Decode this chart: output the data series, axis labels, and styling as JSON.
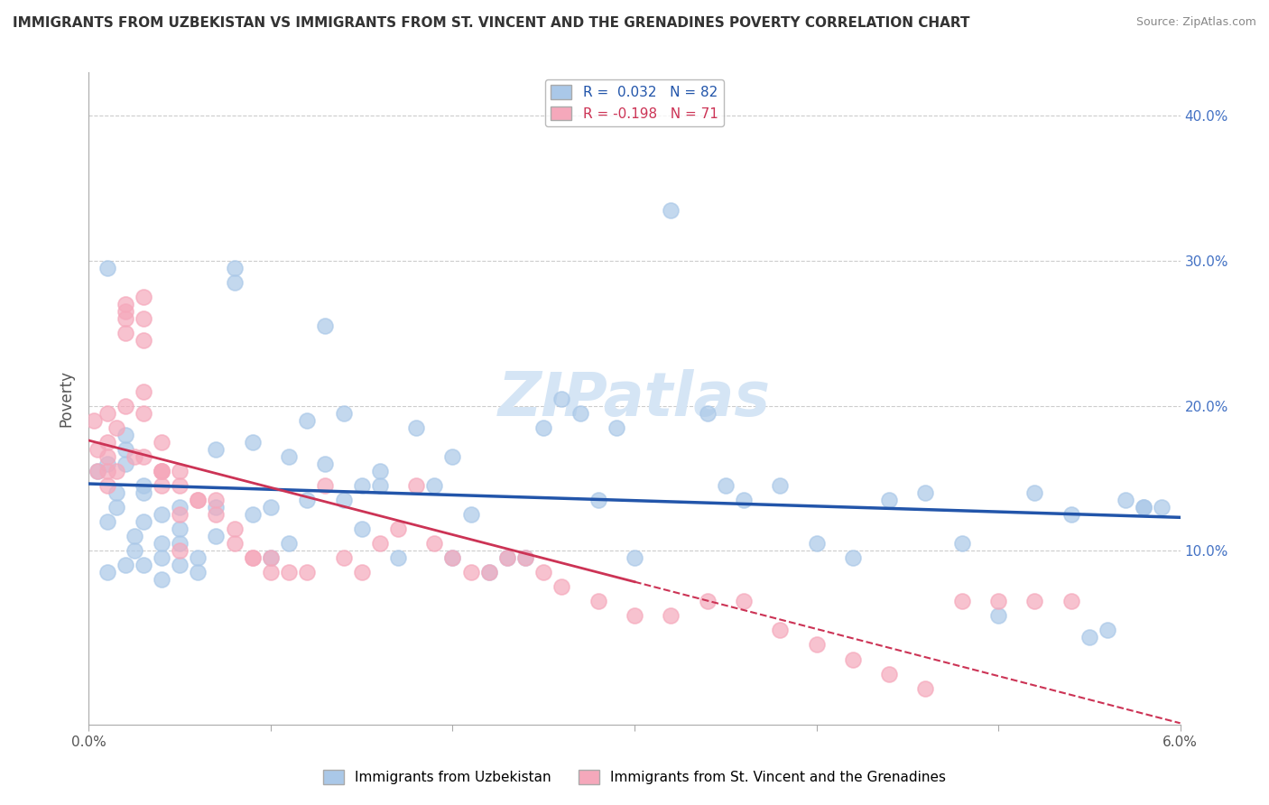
{
  "title": "IMMIGRANTS FROM UZBEKISTAN VS IMMIGRANTS FROM ST. VINCENT AND THE GRENADINES POVERTY CORRELATION CHART",
  "source": "Source: ZipAtlas.com",
  "ylabel": "Poverty",
  "xlim": [
    0.0,
    0.06
  ],
  "ylim": [
    -0.02,
    0.43
  ],
  "blue_R": 0.032,
  "blue_N": 82,
  "pink_R": -0.198,
  "pink_N": 71,
  "blue_color": "#aac8e8",
  "pink_color": "#f5a8bb",
  "blue_line_color": "#2255aa",
  "pink_line_color": "#cc3355",
  "watermark_color": "#d5e5f5",
  "blue_scatter_x": [
    0.0005,
    0.001,
    0.0015,
    0.001,
    0.002,
    0.001,
    0.0015,
    0.002,
    0.002,
    0.001,
    0.0025,
    0.002,
    0.003,
    0.0025,
    0.003,
    0.003,
    0.003,
    0.004,
    0.004,
    0.004,
    0.004,
    0.005,
    0.005,
    0.005,
    0.005,
    0.006,
    0.006,
    0.007,
    0.007,
    0.007,
    0.008,
    0.008,
    0.009,
    0.009,
    0.01,
    0.01,
    0.011,
    0.011,
    0.012,
    0.012,
    0.013,
    0.013,
    0.014,
    0.014,
    0.015,
    0.015,
    0.016,
    0.016,
    0.017,
    0.018,
    0.019,
    0.02,
    0.02,
    0.021,
    0.022,
    0.023,
    0.024,
    0.025,
    0.026,
    0.027,
    0.028,
    0.029,
    0.03,
    0.032,
    0.034,
    0.035,
    0.036,
    0.038,
    0.04,
    0.042,
    0.044,
    0.046,
    0.048,
    0.05,
    0.052,
    0.054,
    0.055,
    0.056,
    0.057,
    0.058,
    0.058,
    0.059
  ],
  "blue_scatter_y": [
    0.155,
    0.295,
    0.14,
    0.16,
    0.18,
    0.12,
    0.13,
    0.17,
    0.16,
    0.085,
    0.11,
    0.09,
    0.14,
    0.1,
    0.09,
    0.12,
    0.145,
    0.095,
    0.105,
    0.125,
    0.08,
    0.115,
    0.09,
    0.105,
    0.13,
    0.085,
    0.095,
    0.11,
    0.17,
    0.13,
    0.295,
    0.285,
    0.125,
    0.175,
    0.095,
    0.13,
    0.165,
    0.105,
    0.19,
    0.135,
    0.16,
    0.255,
    0.195,
    0.135,
    0.145,
    0.115,
    0.155,
    0.145,
    0.095,
    0.185,
    0.145,
    0.165,
    0.095,
    0.125,
    0.085,
    0.095,
    0.095,
    0.185,
    0.205,
    0.195,
    0.135,
    0.185,
    0.095,
    0.335,
    0.195,
    0.145,
    0.135,
    0.145,
    0.105,
    0.095,
    0.135,
    0.14,
    0.105,
    0.055,
    0.14,
    0.125,
    0.04,
    0.045,
    0.135,
    0.13,
    0.13,
    0.13
  ],
  "pink_scatter_x": [
    0.0003,
    0.0005,
    0.0005,
    0.001,
    0.001,
    0.001,
    0.001,
    0.001,
    0.0015,
    0.0015,
    0.002,
    0.002,
    0.002,
    0.002,
    0.002,
    0.0025,
    0.003,
    0.003,
    0.003,
    0.003,
    0.003,
    0.003,
    0.004,
    0.004,
    0.004,
    0.004,
    0.004,
    0.005,
    0.005,
    0.005,
    0.005,
    0.006,
    0.006,
    0.007,
    0.007,
    0.008,
    0.008,
    0.009,
    0.009,
    0.01,
    0.01,
    0.011,
    0.012,
    0.013,
    0.014,
    0.015,
    0.016,
    0.017,
    0.018,
    0.019,
    0.02,
    0.021,
    0.022,
    0.023,
    0.024,
    0.025,
    0.026,
    0.028,
    0.03,
    0.032,
    0.034,
    0.036,
    0.038,
    0.04,
    0.042,
    0.044,
    0.046,
    0.048,
    0.05,
    0.052,
    0.054
  ],
  "pink_scatter_y": [
    0.19,
    0.17,
    0.155,
    0.175,
    0.155,
    0.195,
    0.145,
    0.165,
    0.185,
    0.155,
    0.265,
    0.27,
    0.25,
    0.26,
    0.2,
    0.165,
    0.26,
    0.245,
    0.165,
    0.275,
    0.195,
    0.21,
    0.155,
    0.145,
    0.155,
    0.175,
    0.155,
    0.155,
    0.1,
    0.125,
    0.145,
    0.135,
    0.135,
    0.125,
    0.135,
    0.115,
    0.105,
    0.095,
    0.095,
    0.095,
    0.085,
    0.085,
    0.085,
    0.145,
    0.095,
    0.085,
    0.105,
    0.115,
    0.145,
    0.105,
    0.095,
    0.085,
    0.085,
    0.095,
    0.095,
    0.085,
    0.075,
    0.065,
    0.055,
    0.055,
    0.065,
    0.065,
    0.045,
    0.035,
    0.025,
    0.015,
    0.005,
    0.065,
    0.065,
    0.065,
    0.065
  ],
  "pink_solid_xlim": [
    0.0,
    0.03
  ],
  "pink_dashed_xlim": [
    0.03,
    0.06
  ]
}
